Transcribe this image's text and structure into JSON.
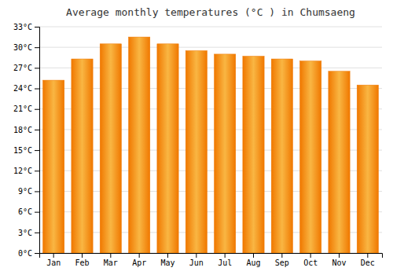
{
  "chart_data": {
    "type": "bar",
    "title": "Average monthly temperatures (°C ) in Chumsaeng",
    "categories": [
      "Jan",
      "Feb",
      "Mar",
      "Apr",
      "May",
      "Jun",
      "Jul",
      "Aug",
      "Sep",
      "Oct",
      "Nov",
      "Dec"
    ],
    "values": [
      25.2,
      28.3,
      30.5,
      31.5,
      30.5,
      29.5,
      29.0,
      28.7,
      28.3,
      28.0,
      26.5,
      24.5
    ],
    "color": "#F07800",
    "ylim": [
      0,
      33
    ],
    "yticks": [
      {
        "value": 0,
        "label": "0°C"
      },
      {
        "value": 3,
        "label": "3°C"
      },
      {
        "value": 6,
        "label": "6°C"
      },
      {
        "value": 9,
        "label": "9°C"
      },
      {
        "value": 12,
        "label": "12°C"
      },
      {
        "value": 15,
        "label": "15°C"
      },
      {
        "value": 18,
        "label": "18°C"
      },
      {
        "value": 21,
        "label": "21°C"
      },
      {
        "value": 24,
        "label": "24°C"
      },
      {
        "value": 27,
        "label": "27°C"
      },
      {
        "value": 30,
        "label": "30°C"
      },
      {
        "value": 33,
        "label": "33°C"
      }
    ],
    "grid": true
  }
}
